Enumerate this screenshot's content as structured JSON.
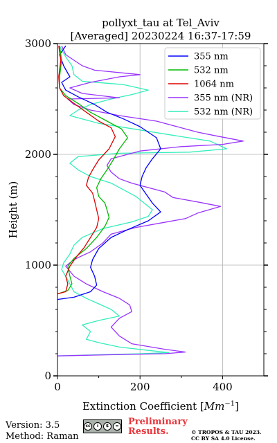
{
  "chart_data": {
    "type": "line",
    "title": "pollyxt_tau at Tel_Aviv",
    "subtitle": "[Averaged] 20230224 16:37-17:59",
    "xlabel": "Extinction Coefficient [",
    "xlabel_unit": "Mm",
    "xlabel_exp": "−1",
    "xlabel_close": "]",
    "ylabel": "Height (m)",
    "xlim": [
      0,
      500
    ],
    "ylim": [
      0,
      3000
    ],
    "xticks": [
      "0",
      "200",
      "400"
    ],
    "xtick_values": [
      0,
      200,
      400
    ],
    "yticks": [
      "0",
      "1000",
      "2000",
      "3000"
    ],
    "ytick_values": [
      0,
      1000,
      2000,
      3000
    ],
    "grid": true,
    "legend_position": "top-right",
    "series": [
      {
        "name": "355 nm",
        "color": "#0000ff",
        "points": [
          [
            0,
            690
          ],
          [
            40,
            710
          ],
          [
            80,
            760
          ],
          [
            95,
            820
          ],
          [
            90,
            900
          ],
          [
            80,
            980
          ],
          [
            85,
            1050
          ],
          [
            100,
            1150
          ],
          [
            130,
            1250
          ],
          [
            170,
            1320
          ],
          [
            220,
            1400
          ],
          [
            250,
            1480
          ],
          [
            230,
            1560
          ],
          [
            215,
            1640
          ],
          [
            200,
            1720
          ],
          [
            205,
            1800
          ],
          [
            215,
            1880
          ],
          [
            230,
            1960
          ],
          [
            250,
            2050
          ],
          [
            240,
            2150
          ],
          [
            200,
            2250
          ],
          [
            160,
            2320
          ],
          [
            120,
            2380
          ],
          [
            90,
            2450
          ],
          [
            50,
            2520
          ],
          [
            20,
            2580
          ],
          [
            10,
            2650
          ],
          [
            30,
            2700
          ],
          [
            15,
            2800
          ],
          [
            5,
            2900
          ],
          [
            20,
            2980
          ]
        ]
      },
      {
        "name": "532 nm",
        "color": "#00bb00",
        "points": [
          [
            0,
            740
          ],
          [
            25,
            770
          ],
          [
            35,
            830
          ],
          [
            30,
            900
          ],
          [
            25,
            990
          ],
          [
            40,
            1060
          ],
          [
            70,
            1150
          ],
          [
            95,
            1250
          ],
          [
            115,
            1350
          ],
          [
            125,
            1430
          ],
          [
            120,
            1500
          ],
          [
            115,
            1560
          ],
          [
            100,
            1620
          ],
          [
            95,
            1700
          ],
          [
            105,
            1780
          ],
          [
            120,
            1860
          ],
          [
            135,
            1950
          ],
          [
            150,
            2050
          ],
          [
            170,
            2150
          ],
          [
            155,
            2230
          ],
          [
            120,
            2300
          ],
          [
            80,
            2380
          ],
          [
            50,
            2460
          ],
          [
            20,
            2530
          ],
          [
            5,
            2600
          ],
          [
            5,
            2700
          ],
          [
            10,
            2850
          ],
          [
            5,
            2980
          ]
        ]
      },
      {
        "name": "1064 nm",
        "color": "#dd0000",
        "points": [
          [
            0,
            740
          ],
          [
            20,
            760
          ],
          [
            25,
            830
          ],
          [
            20,
            900
          ],
          [
            30,
            990
          ],
          [
            45,
            1070
          ],
          [
            65,
            1160
          ],
          [
            80,
            1250
          ],
          [
            95,
            1340
          ],
          [
            100,
            1420
          ],
          [
            95,
            1500
          ],
          [
            90,
            1580
          ],
          [
            85,
            1650
          ],
          [
            70,
            1720
          ],
          [
            75,
            1790
          ],
          [
            85,
            1860
          ],
          [
            100,
            1950
          ],
          [
            125,
            2050
          ],
          [
            140,
            2160
          ],
          [
            130,
            2240
          ],
          [
            100,
            2300
          ],
          [
            70,
            2380
          ],
          [
            40,
            2460
          ],
          [
            15,
            2530
          ],
          [
            5,
            2600
          ],
          [
            3,
            2700
          ],
          [
            8,
            2850
          ],
          [
            3,
            2980
          ]
        ]
      },
      {
        "name": "355 nm (NR)",
        "color": "#9933ff",
        "points": [
          [
            0,
            180
          ],
          [
            120,
            190
          ],
          [
            260,
            200
          ],
          [
            310,
            215
          ],
          [
            260,
            240
          ],
          [
            180,
            290
          ],
          [
            150,
            360
          ],
          [
            130,
            440
          ],
          [
            150,
            520
          ],
          [
            180,
            580
          ],
          [
            175,
            640
          ],
          [
            150,
            700
          ],
          [
            110,
            760
          ],
          [
            70,
            830
          ],
          [
            40,
            900
          ],
          [
            20,
            990
          ],
          [
            40,
            1050
          ],
          [
            80,
            1120
          ],
          [
            110,
            1200
          ],
          [
            130,
            1280
          ],
          [
            190,
            1340
          ],
          [
            250,
            1380
          ],
          [
            310,
            1420
          ],
          [
            340,
            1470
          ],
          [
            395,
            1530
          ],
          [
            340,
            1570
          ],
          [
            280,
            1610
          ],
          [
            260,
            1660
          ],
          [
            220,
            1700
          ],
          [
            180,
            1740
          ],
          [
            150,
            1780
          ],
          [
            130,
            1840
          ],
          [
            120,
            1900
          ],
          [
            130,
            1960
          ],
          [
            200,
            2030
          ],
          [
            300,
            2070
          ],
          [
            400,
            2090
          ],
          [
            450,
            2120
          ],
          [
            380,
            2170
          ],
          [
            340,
            2200
          ],
          [
            300,
            2240
          ],
          [
            240,
            2300
          ],
          [
            150,
            2350
          ],
          [
            80,
            2400
          ],
          [
            40,
            2450
          ],
          [
            25,
            2500
          ],
          [
            150,
            2510
          ],
          [
            60,
            2550
          ],
          [
            30,
            2600
          ],
          [
            80,
            2650
          ],
          [
            150,
            2700
          ],
          [
            200,
            2720
          ],
          [
            90,
            2760
          ],
          [
            60,
            2800
          ],
          [
            40,
            2850
          ],
          [
            20,
            2900
          ],
          [
            10,
            2980
          ]
        ]
      },
      {
        "name": "532 nm (NR)",
        "color": "#33eebb",
        "points": [
          [
            0,
            180
          ],
          [
            90,
            190
          ],
          [
            200,
            200
          ],
          [
            270,
            210
          ],
          [
            220,
            230
          ],
          [
            150,
            260
          ],
          [
            100,
            300
          ],
          [
            70,
            330
          ],
          [
            80,
            400
          ],
          [
            60,
            460
          ],
          [
            100,
            500
          ],
          [
            150,
            540
          ],
          [
            130,
            600
          ],
          [
            100,
            650
          ],
          [
            70,
            700
          ],
          [
            40,
            760
          ],
          [
            30,
            830
          ],
          [
            20,
            900
          ],
          [
            10,
            960
          ],
          [
            15,
            1020
          ],
          [
            30,
            1100
          ],
          [
            40,
            1180
          ],
          [
            60,
            1250
          ],
          [
            110,
            1330
          ],
          [
            180,
            1390
          ],
          [
            220,
            1440
          ],
          [
            230,
            1500
          ],
          [
            210,
            1560
          ],
          [
            190,
            1620
          ],
          [
            160,
            1680
          ],
          [
            130,
            1740
          ],
          [
            80,
            1800
          ],
          [
            50,
            1860
          ],
          [
            30,
            1920
          ],
          [
            50,
            1980
          ],
          [
            150,
            2010
          ],
          [
            320,
            2020
          ],
          [
            410,
            2050
          ],
          [
            370,
            2120
          ],
          [
            300,
            2160
          ],
          [
            200,
            2220
          ],
          [
            100,
            2280
          ],
          [
            30,
            2350
          ],
          [
            50,
            2400
          ],
          [
            80,
            2450
          ],
          [
            130,
            2500
          ],
          [
            180,
            2540
          ],
          [
            220,
            2580
          ],
          [
            160,
            2630
          ],
          [
            60,
            2660
          ],
          [
            40,
            2720
          ],
          [
            35,
            2800
          ],
          [
            20,
            2880
          ],
          [
            5,
            2980
          ]
        ]
      }
    ]
  },
  "footer": {
    "version": "Version: 3.5",
    "method": "Method: Raman",
    "license_badge": [
      "cc",
      "i",
      "$",
      "="
    ],
    "preliminary_line1": "Preliminary",
    "preliminary_line2": "Results.",
    "credit_line1": "© TROPOS & TAU 2023.",
    "credit_line2": "CC BY SA 4.0 License."
  }
}
